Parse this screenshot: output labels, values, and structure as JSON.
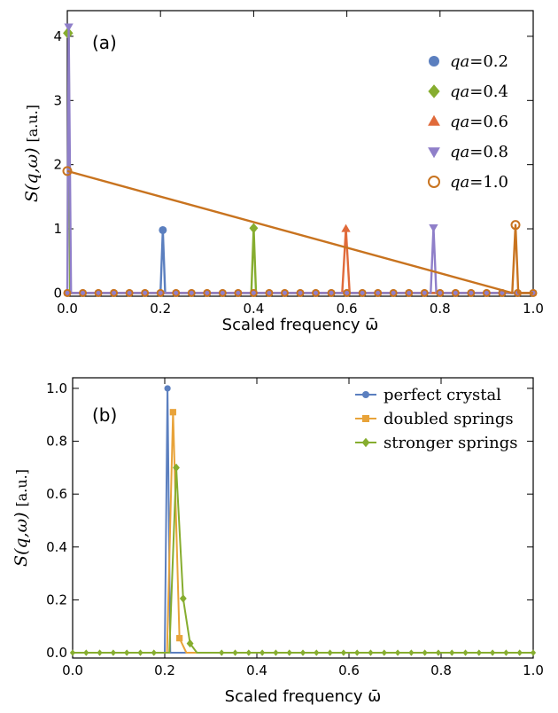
{
  "chart_data": [
    {
      "type": "line",
      "panel_label": "(a)",
      "xlabel": "Scaled frequency ω̄",
      "ylabel": {
        "main": "S(q,ω)",
        "unit": "[a.u.]"
      },
      "xlim": [
        0,
        1
      ],
      "ylim": [
        -0.05,
        4.4
      ],
      "xticks": [
        "0.0",
        "0.2",
        "0.4",
        "0.6",
        "0.8",
        "1.0"
      ],
      "xtick_values": [
        0,
        0.2,
        0.4,
        0.6,
        0.8,
        1.0
      ],
      "yticks": [
        "0",
        "1",
        "2",
        "3",
        "4"
      ],
      "ytick_values": [
        0,
        1,
        2,
        3,
        4
      ],
      "grid": false,
      "legend_position": "right",
      "series": [
        {
          "name_prefix": "qa",
          "name_value": "=0.2",
          "color": "#5b7fbf",
          "marker": "circle",
          "x": [
            0.0,
            0.2,
            0.205,
            0.21,
            1.0
          ],
          "y": [
            0,
            0,
            0.98,
            0,
            0
          ]
        },
        {
          "name_prefix": "qa",
          "name_value": "=0.4",
          "color": "#86ad2f",
          "marker": "diamond",
          "x": [
            0.0,
            0.003,
            0.006,
            0.395,
            0.4,
            0.405,
            1.0
          ],
          "y": [
            4.05,
            4.05,
            0,
            0,
            1.01,
            0,
            0
          ]
        },
        {
          "name_prefix": "qa",
          "name_value": "=0.6",
          "color": "#e06a3a",
          "marker": "triangle-up",
          "x": [
            0.0,
            0.59,
            0.598,
            0.606,
            1.0
          ],
          "y": [
            0,
            0,
            1.0,
            0,
            0
          ]
        },
        {
          "name_prefix": "qa",
          "name_value": "=0.8",
          "color": "#8f7fc9",
          "marker": "triangle-down",
          "x": [
            0.0,
            0.003,
            0.008,
            0.78,
            0.786,
            0.792,
            1.0
          ],
          "y": [
            0,
            4.15,
            0,
            0,
            1.02,
            0,
            0
          ]
        },
        {
          "name_prefix": "qa",
          "name_value": "=1.0",
          "color": "#c8731f",
          "marker": "circle-open",
          "x": [
            0.0,
            0.955,
            0.962,
            0.968,
            1.0
          ],
          "y": [
            1.9,
            0,
            1.06,
            0,
            0
          ]
        }
      ]
    },
    {
      "type": "line",
      "panel_label": "(b)",
      "xlabel": "Scaled frequency ω̄",
      "ylabel": {
        "main": "S(q,ω)",
        "unit": "[a.u.]"
      },
      "xlim": [
        0,
        1
      ],
      "ylim": [
        -0.02,
        1.04
      ],
      "xticks": [
        "0.0",
        "0.2",
        "0.4",
        "0.6",
        "0.8",
        "1.0"
      ],
      "xtick_values": [
        0,
        0.2,
        0.4,
        0.6,
        0.8,
        1.0
      ],
      "yticks": [
        "0.0",
        "0.2",
        "0.4",
        "0.6",
        "0.8",
        "1.0"
      ],
      "ytick_values": [
        0,
        0.2,
        0.4,
        0.6,
        0.8,
        1.0
      ],
      "grid": false,
      "legend_position": "top-right",
      "series": [
        {
          "name": "perfect crystal",
          "color": "#5b7fbf",
          "marker": "circle",
          "x": [
            0.0,
            0.2,
            0.206,
            0.212,
            1.0
          ],
          "y": [
            0,
            0,
            1.0,
            0,
            0
          ]
        },
        {
          "name": "doubled springs",
          "color": "#e8a33a",
          "marker": "square",
          "x": [
            0.0,
            0.205,
            0.218,
            0.232,
            0.247,
            1.0
          ],
          "y": [
            0,
            0,
            0.91,
            0.055,
            0,
            0
          ]
        },
        {
          "name": "stronger springs",
          "color": "#86ad2f",
          "marker": "diamond",
          "x": [
            0.0,
            0.21,
            0.225,
            0.24,
            0.255,
            0.27,
            1.0
          ],
          "y": [
            0,
            0,
            0.7,
            0.205,
            0.035,
            0,
            0
          ]
        }
      ]
    }
  ]
}
